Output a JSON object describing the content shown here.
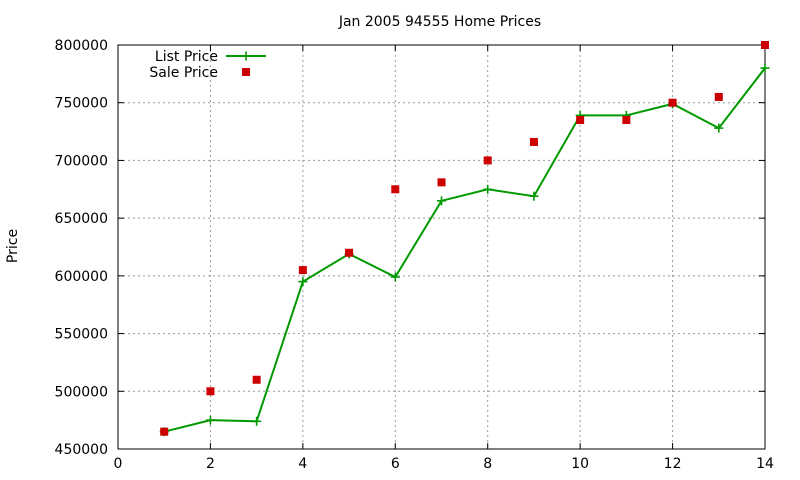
{
  "chart_data": {
    "type": "line",
    "title": "Jan 2005 94555 Home Prices",
    "xlabel": "",
    "ylabel": "Price",
    "xlim": [
      0,
      14
    ],
    "ylim": [
      450000,
      800000
    ],
    "x_ticks": [
      0,
      2,
      4,
      6,
      8,
      10,
      12,
      14
    ],
    "y_ticks": [
      450000,
      500000,
      550000,
      600000,
      650000,
      700000,
      750000,
      800000
    ],
    "grid": true,
    "legend_position": "top-left",
    "series": [
      {
        "name": "List Price",
        "style": "line-with-plus-markers",
        "color": "#009900",
        "x": [
          1,
          2,
          3,
          4,
          5,
          6,
          7,
          8,
          9,
          10,
          11,
          12,
          13,
          14
        ],
        "y": [
          465000,
          475000,
          474000,
          595000,
          619000,
          599000,
          665000,
          675000,
          669000,
          739000,
          739000,
          749000,
          728000,
          780000
        ]
      },
      {
        "name": "Sale Price",
        "style": "square-markers",
        "color": "#cc0000",
        "x": [
          1,
          2,
          3,
          4,
          5,
          6,
          7,
          8,
          9,
          10,
          11,
          12,
          13,
          14
        ],
        "y": [
          465000,
          500000,
          510000,
          605000,
          620000,
          675000,
          681000,
          700000,
          716000,
          735000,
          735000,
          750000,
          755000,
          800000
        ]
      }
    ]
  }
}
